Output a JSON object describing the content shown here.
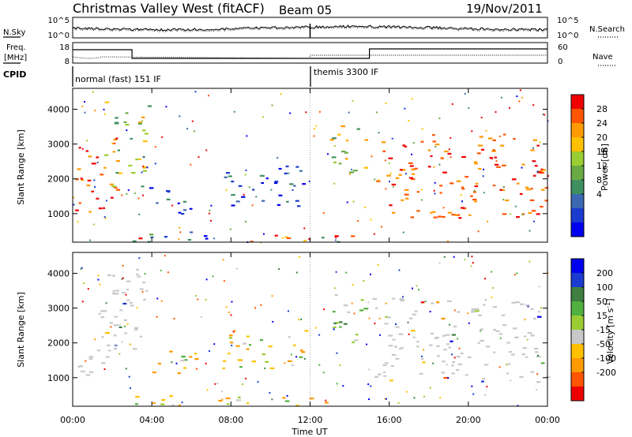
{
  "header": {
    "radar": "Christmas Valley West (fitACF)",
    "beam": "Beam 05",
    "date": "19/Nov/2011"
  },
  "nsky_panel": {
    "left_label": "N.Sky",
    "left_ticks": [
      "10^5",
      "10^0"
    ],
    "right_ticks": [
      "10^5",
      "10^0"
    ],
    "right_label": "N.Search"
  },
  "freq_panel": {
    "left_label_1": "Freq.",
    "left_label_2": "[MHz]",
    "left_ticks": [
      "18",
      "8"
    ],
    "right_ticks": [
      "60",
      "0"
    ],
    "right_label": "Nave",
    "cpid_label": "CPID",
    "modes": [
      "normal (fast) 151 IF",
      "themis 3300 IF"
    ]
  },
  "chart_data": [
    {
      "type": "heatmap",
      "title": "",
      "ylabel": "Slant Range [km]",
      "yticks": [
        1000,
        2000,
        3000,
        4000
      ],
      "ylim": [
        180,
        4600
      ],
      "xlim": [
        0,
        24
      ],
      "colorbar": {
        "label": "Power [dB]",
        "ticks": [
          "28",
          "24",
          "20",
          "16",
          "12",
          "8",
          "4"
        ],
        "colors": [
          "#0000ee",
          "#1a3ad0",
          "#3b68b0",
          "#3f9060",
          "#6aaa45",
          "#9acd32",
          "#ffc000",
          "#ff9a00",
          "#ff5500",
          "#ee0000"
        ]
      },
      "regions": [
        {
          "t0": 0.1,
          "t1": 2.2,
          "r0": 1000,
          "r1": 3300,
          "value": "high"
        },
        {
          "t0": 1.5,
          "t1": 3.8,
          "r0": 1800,
          "r1": 4300,
          "value": "mid"
        },
        {
          "t0": 3.8,
          "t1": 6.2,
          "r0": 1000,
          "r1": 1800,
          "value": "low"
        },
        {
          "t0": 7.5,
          "t1": 11.8,
          "r0": 1200,
          "r1": 2400,
          "value": "low"
        },
        {
          "t0": 3.0,
          "t1": 14.2,
          "r0": 200,
          "r1": 500,
          "value": "mixed"
        },
        {
          "t0": 13.0,
          "t1": 14.8,
          "r0": 2000,
          "r1": 3600,
          "value": "mid"
        },
        {
          "t0": 15.0,
          "t1": 24.0,
          "r0": 900,
          "r1": 3300,
          "value": "high"
        }
      ]
    },
    {
      "type": "heatmap",
      "title": "",
      "xlabel": "Time UT",
      "ylabel": "Slant Range [km]",
      "yticks": [
        1000,
        2000,
        3000,
        4000
      ],
      "ylim": [
        180,
        4600
      ],
      "xticks": [
        "00:00",
        "04:00",
        "08:00",
        "12:00",
        "16:00",
        "20:00",
        "00:00"
      ],
      "xlim": [
        0,
        24
      ],
      "colorbar": {
        "label": "Velocity [m s^-1]",
        "ticks": [
          "200",
          "100",
          "50",
          "15",
          "-15",
          "-50",
          "-100",
          "-200"
        ],
        "colors": [
          "#ee0000",
          "#ff5500",
          "#ff9a00",
          "#ffc000",
          "#c8c8c8",
          "#9acd32",
          "#50b040",
          "#3f7f3f",
          "#1a3ad0",
          "#0000ee"
        ]
      },
      "regions": [
        {
          "t0": 0.1,
          "t1": 2.2,
          "r0": 1000,
          "r1": 3000,
          "value": "ground"
        },
        {
          "t0": 1.5,
          "t1": 3.8,
          "r0": 1800,
          "r1": 4300,
          "value": "ground"
        },
        {
          "t0": 3.8,
          "t1": 6.2,
          "r0": 1000,
          "r1": 1800,
          "value": "negative"
        },
        {
          "t0": 7.5,
          "t1": 11.8,
          "r0": 1200,
          "r1": 2400,
          "value": "negative"
        },
        {
          "t0": 3.0,
          "t1": 14.2,
          "r0": 200,
          "r1": 500,
          "value": "negative"
        },
        {
          "t0": 13.0,
          "t1": 14.8,
          "r0": 2000,
          "r1": 3600,
          "value": "mixed"
        },
        {
          "t0": 15.0,
          "t1": 24.0,
          "r0": 900,
          "r1": 3300,
          "value": "ground"
        }
      ]
    }
  ]
}
